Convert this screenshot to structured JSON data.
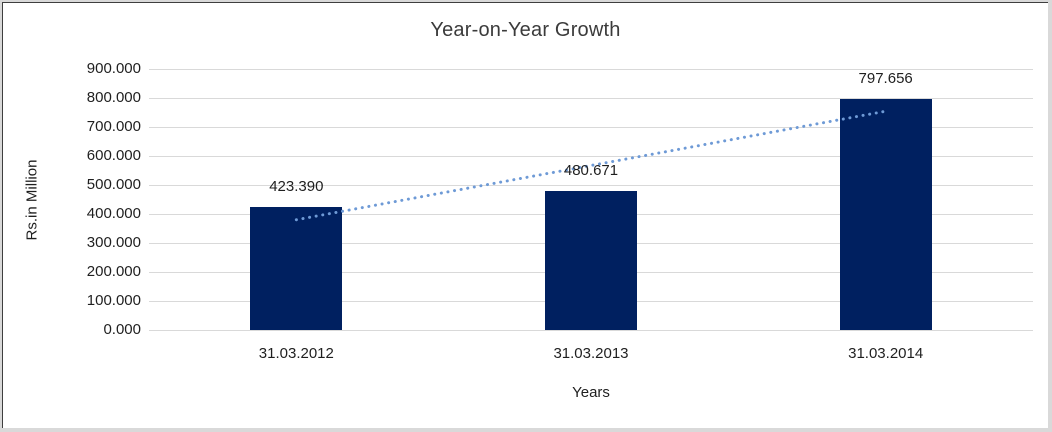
{
  "chart_data": {
    "type": "bar",
    "title": "Year-on-Year Growth",
    "xlabel": "Years",
    "ylabel": "Rs.in Million",
    "categories": [
      "31.03.2012",
      "31.03.2013",
      "31.03.2014"
    ],
    "values": [
      423.39,
      480.671,
      797.656
    ],
    "data_labels": [
      "423.390",
      "480.671",
      "797.656"
    ],
    "ylim": [
      0,
      900
    ],
    "ytick_labels": [
      "0.000",
      "100.000",
      "200.000",
      "300.000",
      "400.000",
      "500.000",
      "600.000",
      "700.000",
      "800.000",
      "900.000"
    ],
    "grid": true,
    "legend": "none",
    "trendline": {
      "type": "linear",
      "style": "dotted"
    },
    "colors": {
      "bar": "#002060",
      "trendline": "#6e9ad6",
      "gridline": "#d9d9d9",
      "tick_text": "#1f1f1f",
      "title_text": "#3b3b3b"
    }
  }
}
